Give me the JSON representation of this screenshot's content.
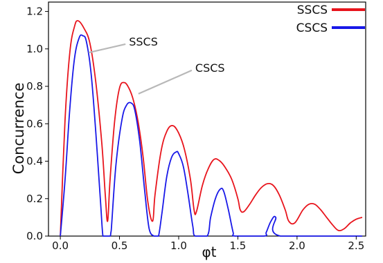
{
  "chart_data": {
    "type": "line",
    "xlabel": "φt",
    "ylabel": "Concurrence",
    "xlim": [
      -0.1,
      2.58
    ],
    "ylim": [
      0.0,
      1.25
    ],
    "xticks": [
      0.0,
      0.5,
      1.0,
      1.5,
      2.0,
      2.5
    ],
    "xtick_labels": [
      "0.0",
      "0.5",
      "1.0",
      "1.5",
      "2.0",
      "2.5"
    ],
    "yticks": [
      0.0,
      0.2,
      0.4,
      0.6,
      0.8,
      1.0,
      1.2
    ],
    "ytick_labels": [
      "0.0",
      "0.2",
      "0.4",
      "0.6",
      "0.8",
      "1.0",
      "1.2"
    ],
    "grid": false,
    "legend_position": "top-right",
    "series": [
      {
        "name": "SSCS",
        "color": "#e8141c",
        "x": [
          0.0,
          0.04,
          0.08,
          0.12,
          0.15,
          0.2,
          0.25,
          0.3,
          0.35,
          0.38,
          0.4,
          0.42,
          0.46,
          0.5,
          0.54,
          0.58,
          0.62,
          0.66,
          0.7,
          0.74,
          0.78,
          0.8,
          0.85,
          0.9,
          0.95,
          1.0,
          1.05,
          1.1,
          1.13,
          1.15,
          1.2,
          1.25,
          1.3,
          1.35,
          1.4,
          1.45,
          1.5,
          1.52,
          1.55,
          1.6,
          1.65,
          1.7,
          1.75,
          1.8,
          1.85,
          1.9,
          1.93,
          1.98,
          2.05,
          2.1,
          2.15,
          2.2,
          2.25,
          2.3,
          2.35,
          2.4,
          2.45,
          2.5,
          2.55
        ],
        "values": [
          0.0,
          0.62,
          0.98,
          1.12,
          1.15,
          1.11,
          1.03,
          0.82,
          0.5,
          0.22,
          0.08,
          0.3,
          0.62,
          0.79,
          0.82,
          0.79,
          0.72,
          0.6,
          0.42,
          0.18,
          0.08,
          0.22,
          0.45,
          0.56,
          0.59,
          0.55,
          0.46,
          0.3,
          0.14,
          0.13,
          0.27,
          0.36,
          0.41,
          0.4,
          0.36,
          0.3,
          0.2,
          0.14,
          0.13,
          0.17,
          0.22,
          0.26,
          0.28,
          0.27,
          0.22,
          0.14,
          0.08,
          0.07,
          0.14,
          0.17,
          0.17,
          0.14,
          0.1,
          0.06,
          0.03,
          0.04,
          0.07,
          0.09,
          0.1
        ]
      },
      {
        "name": "CSCS",
        "color": "#1818e8",
        "x": [
          0.0,
          0.04,
          0.08,
          0.12,
          0.16,
          0.19,
          0.22,
          0.26,
          0.3,
          0.34,
          0.36,
          0.38,
          0.42,
          0.43,
          0.47,
          0.52,
          0.56,
          0.6,
          0.63,
          0.67,
          0.71,
          0.75,
          0.79,
          0.81,
          0.83,
          0.86,
          0.9,
          0.94,
          0.98,
          1.0,
          1.04,
          1.08,
          1.12,
          1.14,
          1.24,
          1.27,
          1.31,
          1.35,
          1.38,
          1.42,
          1.46,
          1.48,
          1.72,
          1.74,
          1.78,
          1.82,
          1.86,
          2.55
        ],
        "values": [
          0.0,
          0.3,
          0.68,
          0.95,
          1.06,
          1.07,
          1.04,
          0.87,
          0.55,
          0.18,
          0.0,
          0.0,
          0.0,
          0.03,
          0.38,
          0.62,
          0.7,
          0.71,
          0.67,
          0.51,
          0.26,
          0.04,
          0.0,
          0.0,
          0.0,
          0.13,
          0.32,
          0.42,
          0.45,
          0.44,
          0.37,
          0.22,
          0.05,
          0.0,
          0.0,
          0.1,
          0.2,
          0.25,
          0.24,
          0.14,
          0.02,
          0.0,
          0.0,
          0.02,
          0.08,
          0.1,
          0.0,
          0.0
        ]
      }
    ],
    "annotations": [
      {
        "text": "SSCS",
        "x": 0.58,
        "y": 1.04,
        "target_x": 0.24,
        "target_y": 0.98
      },
      {
        "text": "CSCS",
        "x": 1.14,
        "y": 0.9,
        "target_x": 0.66,
        "target_y": 0.76
      }
    ]
  }
}
